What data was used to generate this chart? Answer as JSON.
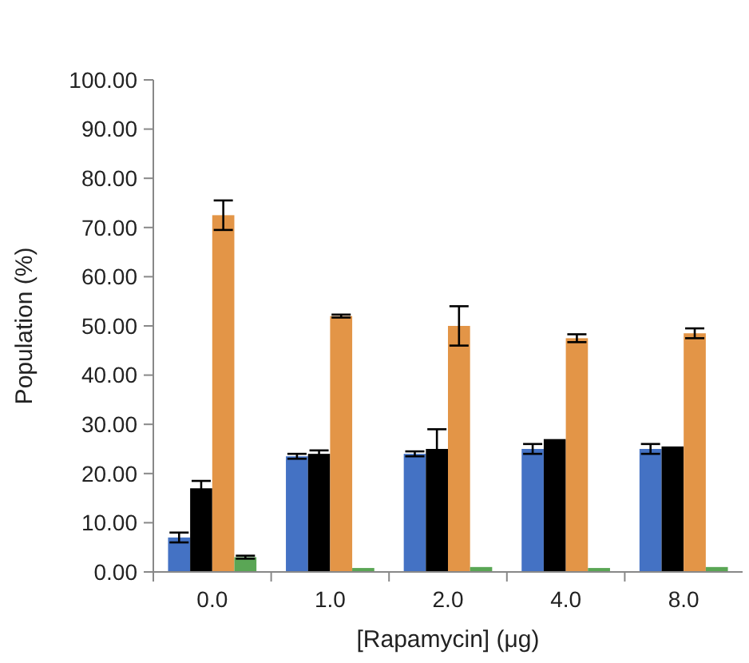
{
  "chart_data": {
    "type": "bar",
    "xlabel": "[Rapamycin] (μg)",
    "ylabel": "Population (%)",
    "categories": [
      "0.0",
      "1.0",
      "2.0",
      "4.0",
      "8.0"
    ],
    "series": [
      {
        "color": "#4472c4",
        "values": [
          7,
          23.5,
          24,
          25,
          25
        ],
        "errors": [
          1,
          0.5,
          0.5,
          1,
          1
        ]
      },
      {
        "color": "#000000",
        "values": [
          17,
          24,
          25,
          27,
          25.5
        ],
        "errors": [
          1.5,
          0.7,
          4,
          null,
          null
        ]
      },
      {
        "color": "#e39547",
        "values": [
          72.5,
          52,
          50,
          47.5,
          48.5
        ],
        "errors": [
          3,
          0.3,
          4,
          0.8,
          1
        ]
      },
      {
        "color": "#5aa655",
        "values": [
          3,
          0.8,
          1,
          0.8,
          1
        ],
        "errors": [
          0.3,
          null,
          null,
          null,
          null
        ]
      }
    ],
    "ylim": [
      0,
      100
    ],
    "yticks": [
      {
        "value": 0,
        "label": "0.00"
      },
      {
        "value": 10,
        "label": "10.00"
      },
      {
        "value": 20,
        "label": "20.00"
      },
      {
        "value": 30,
        "label": "30.00"
      },
      {
        "value": 40,
        "label": "40.00"
      },
      {
        "value": 50,
        "label": "50.00"
      },
      {
        "value": 60,
        "label": "60.00"
      },
      {
        "value": 70,
        "label": "70.00"
      },
      {
        "value": 80,
        "label": "80.00"
      },
      {
        "value": 90,
        "label": "90.00"
      },
      {
        "value": 100,
        "label": "100.00"
      }
    ],
    "grid": false
  }
}
